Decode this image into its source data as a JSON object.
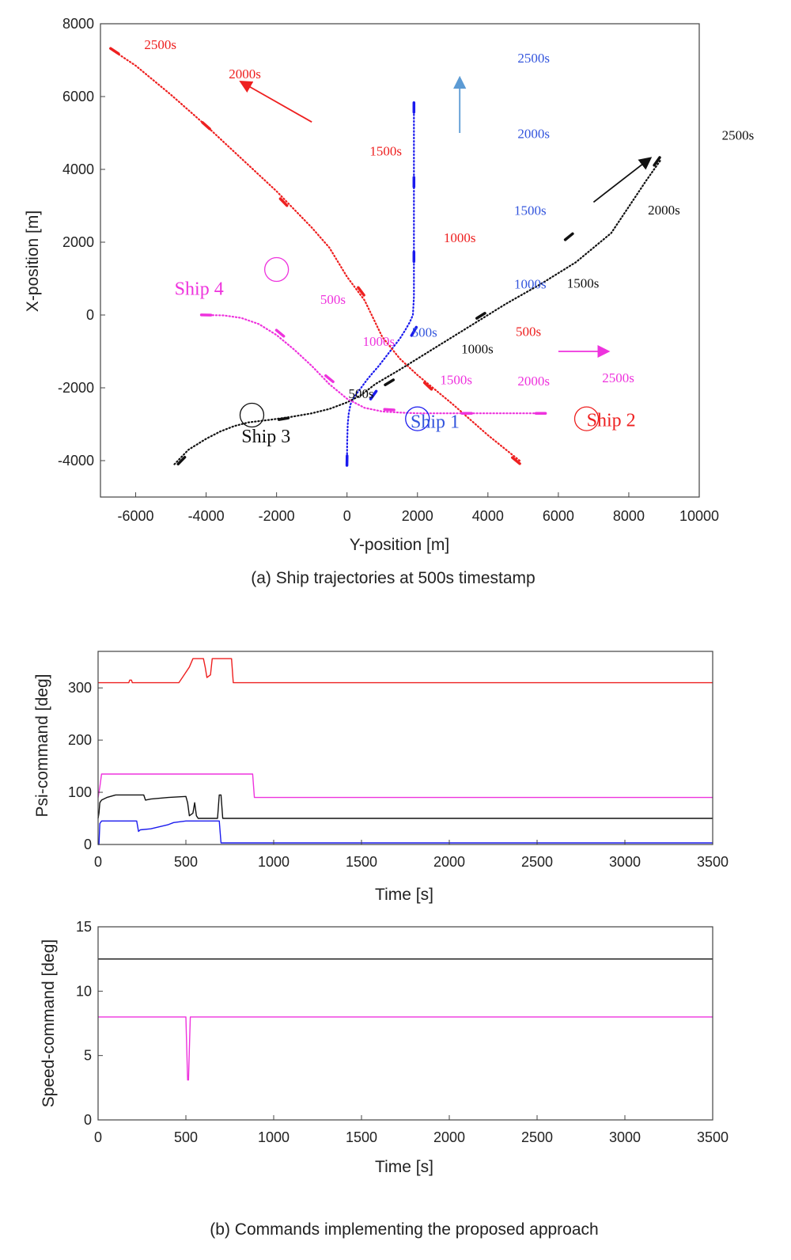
{
  "colors": {
    "ship1": "#1a1aee",
    "ship1_label": "#3355dd",
    "ship1_arrow": "#5c9bd4",
    "ship2": "#ee2020",
    "ship3": "#111111",
    "ship4": "#ee33dd",
    "axis": "#333333"
  },
  "chart_data": [
    {
      "type": "scatter",
      "id": "trajectories",
      "title": "(a) Ship trajectories at 500s timestamp",
      "xlabel": "Y-position [m]",
      "ylabel": "X-position [m]",
      "xlim": [
        -7000,
        10000
      ],
      "ylim": [
        -5000,
        8000
      ],
      "xticks": [
        "-6000",
        "-4000",
        "-2000",
        "0",
        "2000",
        "4000",
        "6000",
        "8000",
        "10000"
      ],
      "yticks": [
        "-4000",
        "-2000",
        "0",
        "2000",
        "4000",
        "6000",
        "8000"
      ],
      "series": [
        {
          "name": "Ship 1",
          "color": "#1a1aee",
          "x": [
            0,
            5,
            20,
            50,
            100,
            180,
            280,
            400,
            550,
            720,
            900,
            1100,
            1300,
            1500,
            1650,
            1780,
            1870,
            1900,
            1900,
            1900,
            1900,
            1900,
            1900,
            1900,
            1900
          ],
          "y": [
            -4000,
            -3500,
            -3000,
            -2700,
            -2450,
            -2300,
            -2150,
            -2000,
            -1800,
            -1600,
            -1400,
            -1150,
            -900,
            -650,
            -420,
            -200,
            0,
            500,
            1000,
            2000,
            3000,
            3800,
            4500,
            5200,
            5800
          ],
          "markers": [
            [
              0,
              -4000
            ],
            [
              750,
              -2200
            ],
            [
              1900,
              -450
            ],
            [
              1900,
              1600
            ],
            [
              1900,
              3650
            ],
            [
              1900,
              5700
            ]
          ]
        },
        {
          "name": "Ship 2",
          "color": "#ee2020",
          "x": [
            4900,
            4000,
            3000,
            2000,
            1500,
            1000,
            500,
            0,
            -500,
            -1000,
            -1500,
            -2000,
            -3000,
            -4000,
            -5000,
            -6000,
            -6700
          ],
          "y": [
            -4000,
            -3300,
            -2450,
            -1650,
            -1200,
            -600,
            400,
            1050,
            1850,
            2400,
            2900,
            3400,
            4300,
            5200,
            6050,
            6850,
            7300
          ],
          "markers": [
            [
              4800,
              -4000
            ],
            [
              2300,
              -1950
            ],
            [
              400,
              650
            ],
            [
              -1800,
              3100
            ],
            [
              -4000,
              5200
            ],
            [
              -6600,
              7250
            ]
          ]
        },
        {
          "name": "Ship 3",
          "color": "#111111",
          "x": [
            -4900,
            -4500,
            -4000,
            -3600,
            -3200,
            -2800,
            -2200,
            -1600,
            -1000,
            -500,
            0,
            400,
            800,
            1500,
            2500,
            3500,
            4500,
            5500,
            6500,
            7500,
            8500,
            8900
          ],
          "y": [
            -4100,
            -3700,
            -3400,
            -3200,
            -3050,
            -2950,
            -2880,
            -2800,
            -2700,
            -2580,
            -2400,
            -2200,
            -1900,
            -1500,
            -900,
            -300,
            300,
            850,
            1450,
            2250,
            3700,
            4250
          ],
          "markers": [
            [
              -4700,
              -4000
            ],
            [
              -1800,
              -2850
            ],
            [
              1200,
              -1850
            ],
            [
              3800,
              -20
            ],
            [
              6300,
              2150
            ],
            [
              8800,
              4220
            ]
          ]
        },
        {
          "name": "Ship 4",
          "color": "#ee33dd",
          "x": [
            -4100,
            -3500,
            -3000,
            -2500,
            -2000,
            -1500,
            -1000,
            -500,
            0,
            500,
            1000,
            1500,
            2000,
            2500,
            3000,
            3500,
            4000,
            4500,
            5000,
            5500
          ],
          "y": [
            0,
            -10,
            -80,
            -250,
            -550,
            -950,
            -1400,
            -1900,
            -2300,
            -2550,
            -2650,
            -2680,
            -2700,
            -2700,
            -2700,
            -2700,
            -2700,
            -2700,
            -2700,
            -2700
          ],
          "markers": [
            [
              -4000,
              0
            ],
            [
              -1900,
              -500
            ],
            [
              -500,
              -1750
            ],
            [
              1200,
              -2600
            ],
            [
              3400,
              -2700
            ],
            [
              5500,
              -2700
            ]
          ]
        }
      ],
      "arrows": [
        {
          "ship": "Ship 1",
          "from": [
            3200,
            5000
          ],
          "to": [
            3200,
            6500
          ]
        },
        {
          "ship": "Ship 2",
          "from": [
            -1000,
            5300
          ],
          "to": [
            -3000,
            6400
          ]
        },
        {
          "ship": "Ship 3",
          "from": [
            7000,
            3100
          ],
          "to": [
            8600,
            4300
          ]
        },
        {
          "ship": "Ship 4",
          "from": [
            6000,
            -1000
          ],
          "to": [
            7400,
            -1000
          ]
        }
      ],
      "circles": [
        {
          "ship": "Ship 1",
          "at": [
            2000,
            -2850
          ]
        },
        {
          "ship": "Ship 2",
          "at": [
            6800,
            -2850
          ]
        },
        {
          "ship": "Ship 3",
          "at": [
            -2700,
            -2750
          ]
        },
        {
          "ship": "Ship 4",
          "at": [
            -2000,
            1250
          ]
        }
      ],
      "annotations": [
        {
          "text": "2500s",
          "ship": "Ship 2",
          "at": [
            -5300,
            7300
          ]
        },
        {
          "text": "2000s",
          "ship": "Ship 2",
          "at": [
            -2900,
            6500
          ]
        },
        {
          "text": "1500s",
          "ship": "Ship 2",
          "at": [
            1100,
            4380
          ]
        },
        {
          "text": "1000s",
          "ship": "Ship 2",
          "at": [
            3200,
            2000
          ]
        },
        {
          "text": "500s",
          "ship": "Ship 2",
          "at": [
            5150,
            -580
          ]
        },
        {
          "text": "2500s",
          "ship": "Ship 1",
          "at": [
            5300,
            6930
          ]
        },
        {
          "text": "2000s",
          "ship": "Ship 1",
          "at": [
            5300,
            4860
          ]
        },
        {
          "text": "1500s",
          "ship": "Ship 1",
          "at": [
            5200,
            2750
          ]
        },
        {
          "text": "1000s",
          "ship": "Ship 1",
          "at": [
            5200,
            730
          ]
        },
        {
          "text": "500s",
          "ship": "Ship 1",
          "at": [
            2200,
            -600
          ]
        },
        {
          "text": "2500s",
          "ship": "Ship 3",
          "at": [
            11100,
            4820
          ]
        },
        {
          "text": "2000s",
          "ship": "Ship 3",
          "at": [
            9000,
            2760
          ]
        },
        {
          "text": "1500s",
          "ship": "Ship 3",
          "at": [
            6700,
            750
          ]
        },
        {
          "text": "1000s",
          "ship": "Ship 3",
          "at": [
            3700,
            -1050
          ]
        },
        {
          "text": "500s",
          "ship": "Ship 3",
          "at": [
            400,
            -2280
          ]
        },
        {
          "text": "500s",
          "ship": "Ship 4",
          "at": [
            -400,
            300
          ]
        },
        {
          "text": "1000s",
          "ship": "Ship 4",
          "at": [
            900,
            -850
          ]
        },
        {
          "text": "1500s",
          "ship": "Ship 4",
          "at": [
            3100,
            -1900
          ]
        },
        {
          "text": "2000s",
          "ship": "Ship 4",
          "at": [
            5300,
            -1940
          ]
        },
        {
          "text": "2500s",
          "ship": "Ship 4",
          "at": [
            7700,
            -1850
          ]
        }
      ],
      "ship_labels": [
        {
          "text": "Ship 1",
          "ship": "Ship 1",
          "at": [
            2500,
            -3100
          ]
        },
        {
          "text": "Ship 2",
          "ship": "Ship 2",
          "at": [
            7500,
            -3050
          ]
        },
        {
          "text": "Ship 3",
          "ship": "Ship 3",
          "at": [
            -2300,
            -3500
          ]
        },
        {
          "text": "Ship 4",
          "ship": "Ship 4",
          "at": [
            -4200,
            550
          ]
        }
      ]
    },
    {
      "type": "line",
      "id": "psi",
      "xlabel": "Time [s]",
      "ylabel": "Psi-command [deg]",
      "xlim": [
        0,
        3500
      ],
      "ylim": [
        0,
        370
      ],
      "xticks": [
        "0",
        "500",
        "1000",
        "1500",
        "2000",
        "2500",
        "3000",
        "3500"
      ],
      "yticks": [
        "0",
        "100",
        "200",
        "300"
      ],
      "series": [
        {
          "name": "Ship 2",
          "color": "#ee2020",
          "x": [
            0,
            175,
            180,
            190,
            195,
            460,
            480,
            520,
            540,
            550,
            600,
            610,
            620,
            640,
            650,
            660,
            760,
            770,
            3500
          ],
          "y": [
            310,
            310,
            315,
            315,
            310,
            310,
            320,
            340,
            356,
            356,
            356,
            340,
            320,
            325,
            356,
            356,
            356,
            310,
            310
          ]
        },
        {
          "name": "Ship 4",
          "color": "#ee33dd",
          "x": [
            0,
            10,
            20,
            30,
            880,
            890,
            3500
          ],
          "y": [
            90,
            110,
            135,
            135,
            135,
            90,
            90
          ]
        },
        {
          "name": "Ship 3",
          "color": "#111111",
          "x": [
            0,
            5,
            10,
            20,
            50,
            100,
            150,
            200,
            260,
            270,
            300,
            400,
            500,
            510,
            520,
            540,
            550,
            560,
            570,
            580,
            680,
            690,
            700,
            710,
            3500
          ],
          "y": [
            50,
            60,
            80,
            85,
            90,
            95,
            95,
            95,
            95,
            85,
            87,
            90,
            92,
            80,
            55,
            60,
            80,
            55,
            50,
            50,
            50,
            95,
            95,
            50,
            50
          ]
        },
        {
          "name": "Ship 1",
          "color": "#1a1aee",
          "x": [
            0,
            5,
            10,
            20,
            220,
            230,
            240,
            300,
            400,
            430,
            500,
            690,
            700,
            3500
          ],
          "y": [
            0,
            0,
            40,
            45,
            45,
            25,
            28,
            30,
            38,
            42,
            45,
            45,
            3,
            3
          ]
        }
      ]
    },
    {
      "type": "line",
      "id": "speed",
      "xlabel": "Time [s]",
      "ylabel": "Speed-command [deg]",
      "xlim": [
        0,
        3500
      ],
      "ylim": [
        0,
        15
      ],
      "xticks": [
        "0",
        "500",
        "1000",
        "1500",
        "2000",
        "2500",
        "3000",
        "3500"
      ],
      "yticks": [
        "0",
        "5",
        "10",
        "15"
      ],
      "series": [
        {
          "name": "Ship 3",
          "color": "#111111",
          "x": [
            0,
            3500
          ],
          "y": [
            12.5,
            12.5
          ]
        },
        {
          "name": "Ship 4",
          "color": "#ee33dd",
          "x": [
            0,
            500,
            505,
            510,
            515,
            520,
            525,
            3500
          ],
          "y": [
            8,
            8,
            5.5,
            3.1,
            3.1,
            5.5,
            8,
            8
          ]
        }
      ],
      "caption": "(b) Commands implementing the proposed approach"
    }
  ]
}
